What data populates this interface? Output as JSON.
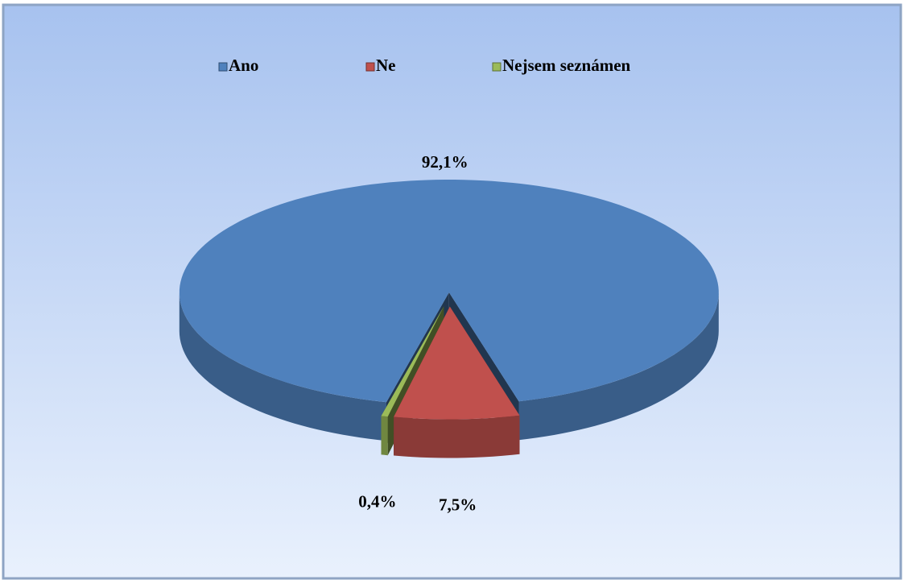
{
  "chart_data": {
    "type": "pie",
    "categories": [
      "Ano",
      "Ne",
      "Nejsem seznámen"
    ],
    "values": [
      92.1,
      7.5,
      0.4
    ],
    "value_labels": [
      "92,1%",
      "7,5%",
      "0,4%"
    ],
    "colors": [
      "#4f81bd",
      "#c0504d",
      "#9bbb59"
    ],
    "legend": "top"
  }
}
